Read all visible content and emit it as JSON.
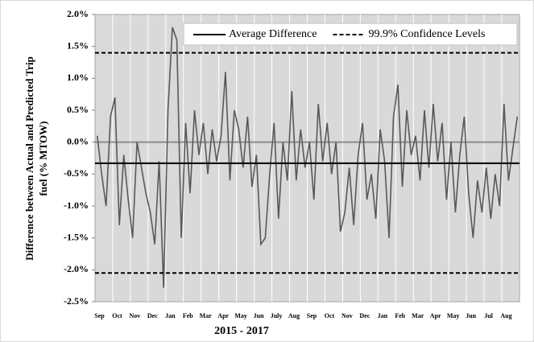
{
  "chart_data": {
    "type": "line",
    "ylabel": [
      "Difference between Actual and Predicted Trip",
      "fuel (% MTOW)"
    ],
    "xlabel": "2015 - 2017",
    "categories": [
      null,
      null,
      "Sep",
      null,
      null,
      null,
      "Oct",
      null,
      null,
      null,
      "Nov",
      null,
      null,
      null,
      "Dec",
      null,
      null,
      null,
      "Jan",
      null,
      null,
      null,
      "Feb",
      null,
      null,
      null,
      "Mar",
      null,
      null,
      null,
      "Apr",
      null,
      null,
      null,
      "May",
      null,
      null,
      null,
      "Jun",
      null,
      null,
      null,
      "July",
      null,
      null,
      null,
      "Aug",
      null,
      null,
      null,
      "Sep",
      null,
      null,
      null,
      "Oct",
      null,
      null,
      null,
      "Nov",
      null,
      null,
      null,
      "Dec",
      null,
      null,
      null,
      "Jan",
      null,
      null,
      null,
      "Feb",
      null,
      null,
      null,
      "Mar",
      null,
      null,
      null,
      "Apr",
      null,
      null,
      null,
      "May",
      null,
      null,
      null,
      "Jun",
      null,
      null,
      null,
      "Jul",
      null,
      null,
      null,
      "Aug",
      null
    ],
    "series": [
      {
        "color": "#595959",
        "values": [
          0.1,
          -0.5,
          -1.0,
          0.4,
          0.7,
          -1.3,
          -0.2,
          -0.9,
          -1.5,
          0.0,
          -0.4,
          -0.8,
          -1.1,
          -1.6,
          -0.3,
          -2.28,
          0.5,
          1.8,
          1.6,
          -1.5,
          0.3,
          -0.8,
          0.5,
          -0.2,
          0.3,
          -0.5,
          0.2,
          -0.3,
          0.1,
          1.1,
          -0.6,
          0.5,
          0.2,
          -0.4,
          0.4,
          -0.7,
          -0.2,
          -1.6,
          -1.5,
          -0.5,
          0.3,
          -1.2,
          0.0,
          -0.6,
          0.8,
          -0.6,
          0.2,
          -0.4,
          0.0,
          -0.9,
          0.6,
          -0.3,
          0.3,
          -0.5,
          0.0,
          -1.4,
          -1.1,
          -0.4,
          -1.3,
          -0.2,
          0.3,
          -0.9,
          -0.5,
          -1.2,
          0.2,
          -0.3,
          -1.5,
          0.4,
          0.9,
          -0.7,
          0.5,
          -0.2,
          0.1,
          -0.6,
          0.5,
          -0.4,
          0.6,
          -0.3,
          0.3,
          -0.9,
          0.0,
          -1.1,
          -0.2,
          0.4,
          -0.8,
          -1.5,
          -0.6,
          -1.1,
          -0.4,
          -1.2,
          -0.5,
          -1.0,
          0.6,
          -0.6,
          -0.1,
          0.4
        ]
      }
    ],
    "reference_lines": [
      {
        "name": "Average Difference",
        "color": "#000000",
        "dash": false,
        "values": [
          -0.33
        ]
      },
      {
        "name": "99.9% Confidence Levels",
        "color": "#000000",
        "dash": true,
        "values": [
          1.4,
          -2.05
        ]
      }
    ],
    "ylim": [
      -2.5,
      2.0
    ],
    "yticks": [
      {
        "value": -2.5,
        "label": "-2.5%"
      },
      {
        "value": -2.0,
        "label": "-2.0%"
      },
      {
        "value": -1.5,
        "label": "-1.5%"
      },
      {
        "value": -1.0,
        "label": "-1.0%"
      },
      {
        "value": -0.5,
        "label": "-0.5%"
      },
      {
        "value": 0.0,
        "label": "0.0%"
      },
      {
        "value": 0.5,
        "label": "0.5%"
      },
      {
        "value": 1.0,
        "label": "1.0%"
      },
      {
        "value": 1.5,
        "label": "1.5%"
      },
      {
        "value": 2.0,
        "label": "2.0%"
      }
    ],
    "grid": true,
    "legend": "top"
  }
}
